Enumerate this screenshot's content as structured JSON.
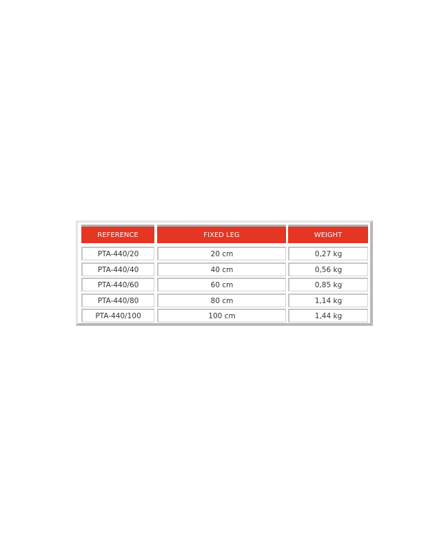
{
  "table": {
    "headers": [
      "REFERENCE",
      "FIXED LEG",
      "WEIGHT"
    ],
    "rows": [
      [
        "PTA-440/20",
        "20  cm",
        "0,27 kg"
      ],
      [
        "PTA-440/40",
        "40 cm",
        "0,56 kg"
      ],
      [
        "PTA-440/60",
        "60 cm",
        "0,85 kg"
      ],
      [
        "PTA-440/80",
        "80 cm",
        "1,14 kg"
      ],
      [
        "PTA-440/100",
        "100 cm",
        "1,44 kg"
      ]
    ],
    "colors": {
      "header_bg": "#e53523",
      "header_text": "#f5f5f5"
    }
  }
}
